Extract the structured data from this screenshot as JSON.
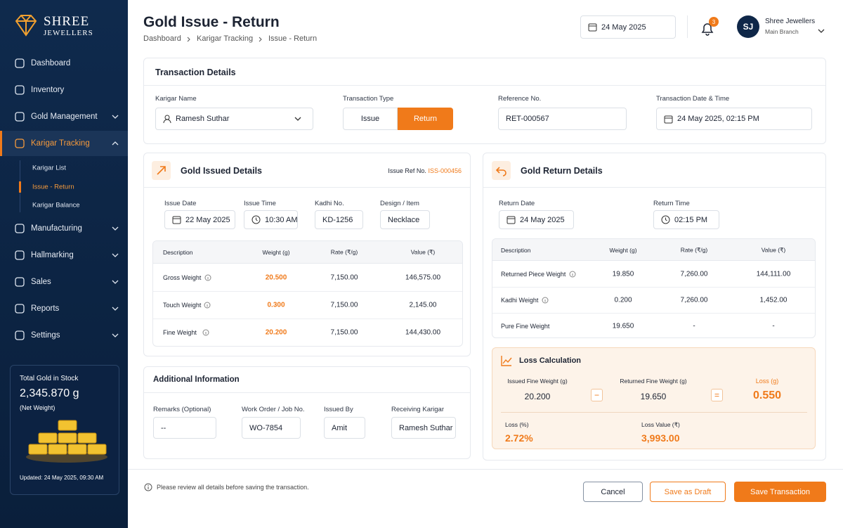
{
  "brand": {
    "name": "SHREE",
    "tagline": "JEWELLERS"
  },
  "nav": {
    "items": [
      {
        "label": "Dashboard"
      },
      {
        "label": "Inventory"
      },
      {
        "label": "Gold Management"
      },
      {
        "label": "Karigar Tracking",
        "children": [
          "Karigar List",
          "Issue - Return",
          "Karigar Balance"
        ]
      },
      {
        "label": "Manufacturing"
      },
      {
        "label": "Hallmarking"
      },
      {
        "label": "Sales"
      },
      {
        "label": "Reports"
      },
      {
        "label": "Settings"
      }
    ]
  },
  "stock": {
    "title": "Total Gold in Stock",
    "value": "2,345.870 g",
    "note": "(Net Weight)",
    "updated": "Updated: 24 May 2025, 09:30 AM"
  },
  "header": {
    "title": "Gold Issue - Return",
    "breadcrumb": [
      "Dashboard",
      "Karigar Tracking",
      "Issue - Return"
    ],
    "date": "24 May 2025",
    "notifications": "3",
    "user": {
      "initials": "SJ",
      "name": "Shree Jewellers",
      "branch": "Main Branch"
    }
  },
  "transaction": {
    "title": "Transaction Details",
    "karigar": {
      "label": "Karigar Name",
      "value": "Ramesh Suthar"
    },
    "type": {
      "label": "Transaction Type",
      "options": [
        "Issue",
        "Return"
      ]
    },
    "reference": {
      "label": "Reference No.",
      "value": "RET-000567"
    },
    "datetime": {
      "label": "Transaction Date & Time",
      "value": "24 May 2025, 02:15 PM"
    }
  },
  "issued": {
    "title": "Gold Issued Details",
    "ref_label": "Issue Ref No.",
    "ref": "ISS-000456",
    "fields": [
      {
        "label": "Issue Date",
        "value": "22 May 2025"
      },
      {
        "label": "Issue Time",
        "value": "10:30 AM"
      },
      {
        "label": "Kadhi No.",
        "value": "KD-1256"
      },
      {
        "label": "Design / Item",
        "value": "Necklace"
      }
    ],
    "table": {
      "columns": [
        "Description",
        "Weight (g)",
        "Rate (₹/g)",
        "Value (₹)"
      ],
      "rows": [
        [
          "Gross Weight",
          "20.500",
          "7,150.00",
          "146,575.00"
        ],
        [
          "Touch Weight",
          "0.300",
          "7,150.00",
          "2,145.00"
        ],
        [
          "Fine Weight",
          "20.200",
          "7,150.00",
          "144,430.00"
        ]
      ]
    }
  },
  "returned": {
    "title": "Gold Return Details",
    "fields": [
      {
        "label": "Return Date",
        "value": "24 May 2025"
      },
      {
        "label": "Return Time",
        "value": "02:15 PM"
      }
    ],
    "table": {
      "columns": [
        "Description",
        "Weight (g)",
        "Rate (₹/g)",
        "Value (₹)"
      ],
      "rows": [
        [
          "Returned Piece Weight",
          "19.850",
          "7,260.00",
          "144,111.00"
        ],
        [
          "Kadhi Weight",
          "0.200",
          "7,260.00",
          "1,452.00"
        ],
        [
          "Pure Fine Weight",
          "19.650",
          "-",
          "-"
        ]
      ]
    }
  },
  "loss": {
    "title": "Loss Calculation",
    "issued_label": "Issued Fine Weight (g)",
    "issued": "20.200",
    "returned_label": "Returned Fine Weight (g)",
    "returned": "19.650",
    "loss_label": "Loss (g)",
    "loss": "0.550",
    "percent_label": "Loss (%)",
    "percent": "2.72%",
    "value_label": "Loss Value (₹)",
    "value": "3,993.00"
  },
  "additional": {
    "title": "Additional Information",
    "fields": [
      {
        "label": "Remarks (Optional)",
        "value": "--"
      },
      {
        "label": "Work Order / Job No.",
        "value": "WO-7854"
      },
      {
        "label": "Issued By",
        "value": "Amit"
      },
      {
        "label": "Receiving Karigar",
        "value": "Ramesh Suthar"
      }
    ]
  },
  "footer": {
    "note": "Please review all details before saving the transaction.",
    "buttons": [
      "Cancel",
      "Save as Draft",
      "Save Transaction"
    ]
  }
}
